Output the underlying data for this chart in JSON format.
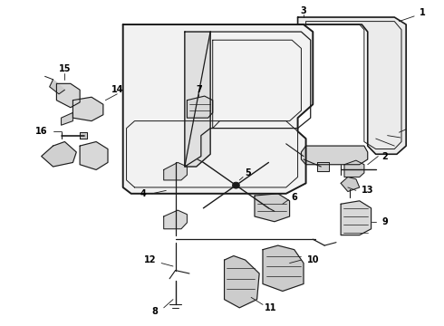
{
  "bg_color": "#ffffff",
  "line_color": "#1a1a1a",
  "figsize": [
    4.9,
    3.6
  ],
  "dpi": 100,
  "label_fs": 7.0
}
